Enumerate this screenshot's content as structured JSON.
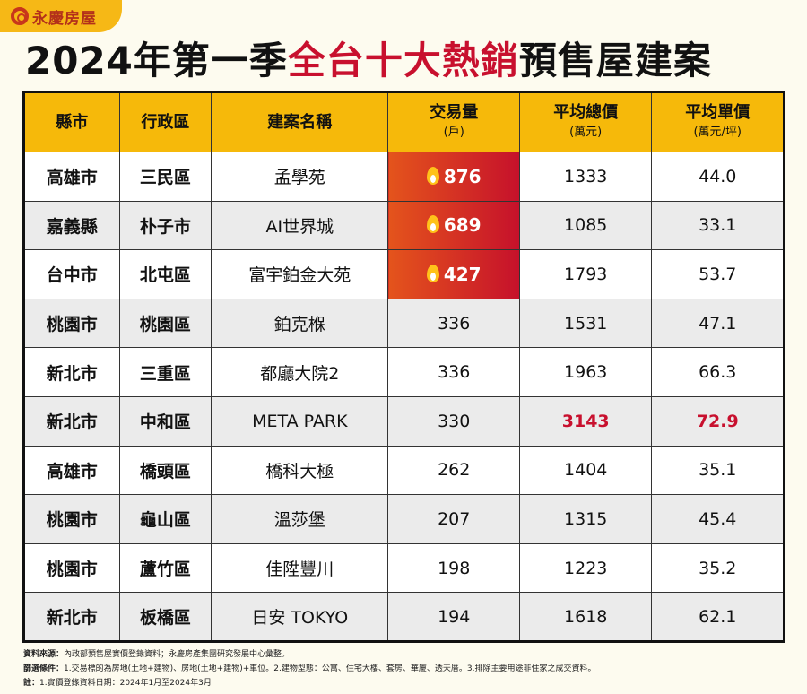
{
  "logo": {
    "text": "永慶房屋"
  },
  "title": {
    "part1": "2024年第一季",
    "part2": "全台十大熱銷",
    "part3": "預售屋建案"
  },
  "table": {
    "headers": [
      {
        "label": "縣市",
        "unit": ""
      },
      {
        "label": "行政區",
        "unit": ""
      },
      {
        "label": "建案名稱",
        "unit": ""
      },
      {
        "label": "交易量",
        "unit": "(戶)"
      },
      {
        "label": "平均總價",
        "unit": "(萬元)"
      },
      {
        "label": "平均單價",
        "unit": "(萬元/坪)"
      }
    ],
    "rows": [
      {
        "city": "高雄市",
        "district": "三民區",
        "project": "孟學苑",
        "volume": "876",
        "total": "1333",
        "unit": "44.0",
        "hot": true
      },
      {
        "city": "嘉義縣",
        "district": "朴子市",
        "project": "AI世界城",
        "volume": "689",
        "total": "1085",
        "unit": "33.1",
        "hot": true
      },
      {
        "city": "台中市",
        "district": "北屯區",
        "project": "富宇鉑金大苑",
        "volume": "427",
        "total": "1793",
        "unit": "53.7",
        "hot": true
      },
      {
        "city": "桃園市",
        "district": "桃園區",
        "project": "鉑克椺",
        "volume": "336",
        "total": "1531",
        "unit": "47.1"
      },
      {
        "city": "新北市",
        "district": "三重區",
        "project": "都廳大院2",
        "volume": "336",
        "total": "1963",
        "unit": "66.3"
      },
      {
        "city": "新北市",
        "district": "中和區",
        "project": "META PARK",
        "volume": "330",
        "total": "3143",
        "unit": "72.9",
        "highlight_price": true
      },
      {
        "city": "高雄市",
        "district": "橋頭區",
        "project": "橋科大極",
        "volume": "262",
        "total": "1404",
        "unit": "35.1"
      },
      {
        "city": "桃園市",
        "district": "龜山區",
        "project": "溫莎堡",
        "volume": "207",
        "total": "1315",
        "unit": "45.4"
      },
      {
        "city": "桃園市",
        "district": "蘆竹區",
        "project": "佳陞豐川",
        "volume": "198",
        "total": "1223",
        "unit": "35.2"
      },
      {
        "city": "新北市",
        "district": "板橋區",
        "project": "日安 TOKYO",
        "volume": "194",
        "total": "1618",
        "unit": "62.1"
      }
    ]
  },
  "notes": {
    "source_label": "資料來源：",
    "source": "內政部預售屋實價登錄資料；永慶房產集團研究發展中心彙整。",
    "filter_label": "篩選條件：",
    "filter": "1.交易標的為房地(土地+建物)、房地(土地+建物)+車位。2.建物型態：公寓、住宅大樓、套房、華廈、透天厝。3.排除主要用途非住家之成交資料。",
    "note_label": "註：",
    "note": "1.實價登錄資料日期：2024年1月至2024年3月"
  },
  "colors": {
    "header": "#f6b90a",
    "accent": "#c8102e",
    "hot_gradient": [
      "#e4541c",
      "#c6112b"
    ],
    "background": "#fdfbef"
  }
}
